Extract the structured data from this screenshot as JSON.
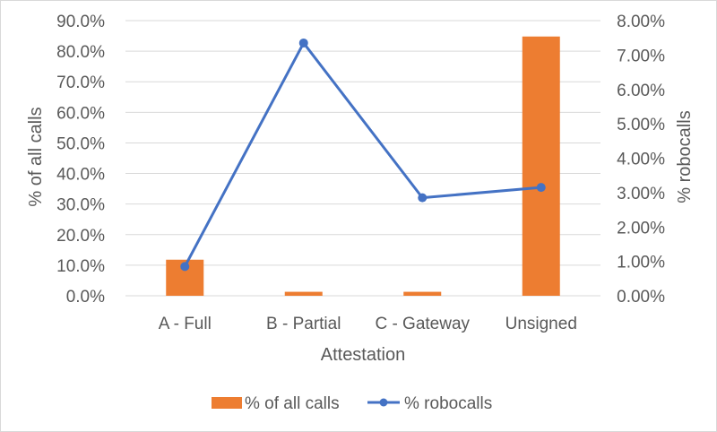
{
  "chart_data": {
    "type": "bar",
    "categories": [
      "A - Full",
      "B - Partial",
      "C - Gateway",
      "Unsigned"
    ],
    "xlabel": "Attestation",
    "y_left": {
      "label": "% of all calls",
      "lim": [
        0,
        90
      ],
      "ticks": [
        "0.0%",
        "10.0%",
        "20.0%",
        "30.0%",
        "40.0%",
        "50.0%",
        "60.0%",
        "70.0%",
        "80.0%",
        "90.0%"
      ]
    },
    "y_right": {
      "label": "% robocalls",
      "lim": [
        0,
        8
      ],
      "ticks": [
        "0.00%",
        "1.00%",
        "2.00%",
        "3.00%",
        "4.00%",
        "5.00%",
        "6.00%",
        "7.00%",
        "8.00%"
      ]
    },
    "series": [
      {
        "name": "% of all calls",
        "type": "bar",
        "axis": "left",
        "color": "#ed7d31",
        "values": [
          11.8,
          1.3,
          1.3,
          84.8
        ]
      },
      {
        "name": "% robocalls",
        "type": "line",
        "axis": "right",
        "color": "#4472c4",
        "values": [
          0.85,
          7.35,
          2.85,
          3.15
        ]
      }
    ],
    "grid": true,
    "legend_position": "bottom"
  }
}
